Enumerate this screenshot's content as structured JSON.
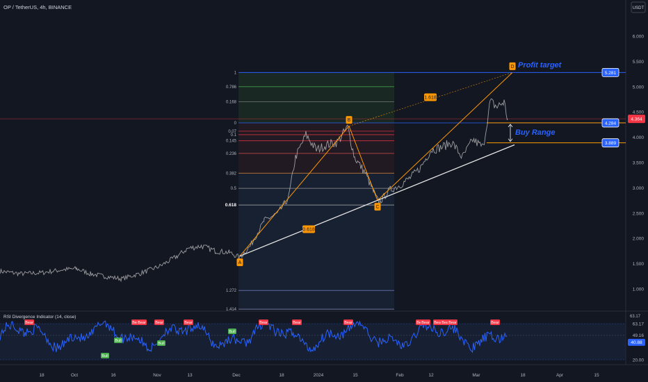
{
  "header": {
    "symbol_title": "OP / TetherUS, 4h, BINANCE",
    "currency": "USDT"
  },
  "price_axis": {
    "ticks": [
      "6.000",
      "5.500",
      "5.000",
      "4.500",
      "4.000",
      "3.500",
      "3.000",
      "2.500",
      "2.000",
      "1.500",
      "1.000"
    ],
    "ticks_values": [
      6.0,
      5.5,
      5.0,
      4.5,
      4.0,
      3.5,
      3.0,
      2.5,
      2.0,
      1.5,
      1.0
    ],
    "badges": [
      {
        "label": "5.281",
        "value": 5.281,
        "style": "blue"
      },
      {
        "label": "4.364",
        "value": 4.364,
        "style": "red"
      },
      {
        "label": "4.284",
        "value": 4.284,
        "style": "blue"
      },
      {
        "label": "3.889",
        "value": 3.889,
        "style": "blue"
      }
    ]
  },
  "time_axis": {
    "labels": [
      "18",
      "Oct",
      "16",
      "Nov",
      "13",
      "Dec",
      "18",
      "2024",
      "15",
      "Feb",
      "12",
      "Mar",
      "18",
      "Apr",
      "15"
    ]
  },
  "fib_levels": [
    {
      "label": "1",
      "value": 5.281
    },
    {
      "label": "0.786",
      "value": 5.0
    },
    {
      "label": "0.168",
      "value": 4.7
    },
    {
      "label": "0",
      "value": 4.284
    },
    {
      "label": "0.07",
      "value": 4.12
    },
    {
      "label": "0.1",
      "value": 4.05
    },
    {
      "label": "0.145",
      "value": 3.93
    },
    {
      "label": "0.236",
      "value": 3.68
    },
    {
      "label": "0.382",
      "value": 3.29
    },
    {
      "label": "0.5",
      "value": 2.99
    },
    {
      "label": "0.618",
      "value": 2.66
    },
    {
      "label": "1.272",
      "value": 0.97
    },
    {
      "label": "1.414",
      "value": 0.6
    }
  ],
  "pattern_points": [
    {
      "label": "A"
    },
    {
      "label": "B"
    },
    {
      "label": "C"
    },
    {
      "label": "D"
    }
  ],
  "ratios": {
    "ab": "0.618",
    "bd": "1.618"
  },
  "annotations": {
    "profit_target": "Profit target",
    "buy_range": "Buy Range"
  },
  "rsi": {
    "title": "RSI Divergence Indicator (14, close)",
    "scale_labels": [
      "63.17",
      "49.16",
      "40.88",
      "20.00"
    ],
    "scale_values": [
      63.17,
      49.16,
      40.88,
      20.0
    ],
    "top_label": "63.17",
    "bull_label": "Bull",
    "bear_label": "Bear"
  },
  "colors": {
    "background": "#131722",
    "price_line": "#cccccc",
    "rsi_line": "#2962ff",
    "pattern": "#ff9800",
    "trendline": "#e6e6e6",
    "current_price": "#f23645",
    "bear": "#f23645",
    "bull": "#4caf50"
  }
}
